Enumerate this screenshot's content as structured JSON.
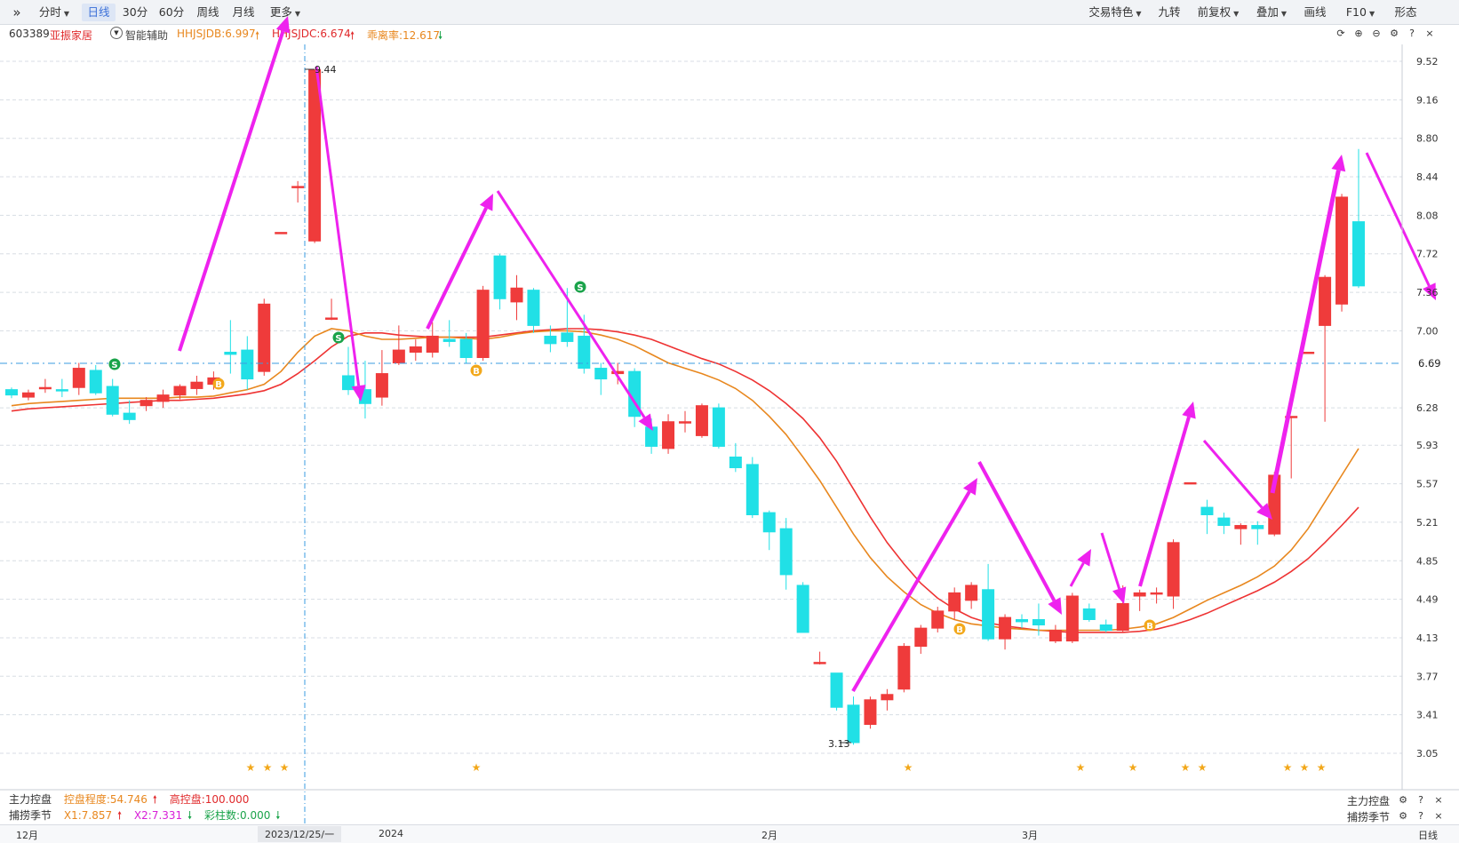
{
  "toolbar": {
    "expand_label": "»",
    "periods": [
      {
        "label": "分时",
        "dropdown": true
      },
      {
        "label": "日线",
        "active": true
      },
      {
        "label": "30分"
      },
      {
        "label": "60分"
      },
      {
        "label": "周线"
      },
      {
        "label": "月线"
      },
      {
        "label": "更多",
        "dropdown": true
      }
    ],
    "right_tools": [
      {
        "label": "交易特色",
        "dropdown": true
      },
      {
        "label": "九转"
      },
      {
        "label": "前复权",
        "dropdown": true
      },
      {
        "label": "叠加",
        "dropdown": true
      },
      {
        "label": "画线"
      },
      {
        "label": "F10",
        "dropdown": true
      },
      {
        "label": "形态"
      }
    ]
  },
  "info": {
    "code": "603389",
    "name": "亚振家居",
    "assist_label": "智能辅助",
    "ind1": "HHJSJDB:6.997",
    "ind2": "HHJSJDC:6.674",
    "ind3": "乖离率:12.617"
  },
  "price_axis": {
    "ticks": [
      "9.52",
      "9.16",
      "8.80",
      "8.44",
      "8.08",
      "7.72",
      "7.36",
      "7.00",
      "6.28",
      "5.93",
      "5.57",
      "5.21",
      "4.85",
      "4.49",
      "4.13",
      "3.77",
      "3.41",
      "3.05"
    ],
    "current_price": "6.69"
  },
  "annotations": {
    "high_label": "9.44",
    "low_label": "3.13"
  },
  "sub_indicators": {
    "line1": {
      "name": "主力控盘",
      "a": "控盘程度:54.746",
      "b": "高控盘:100.000"
    },
    "line2": {
      "name": "捕捞季节",
      "a": "X1:7.857",
      "b": "X2:7.331",
      "c": "彩柱数:0.000"
    },
    "right1": "主力控盘",
    "right2": "捕捞季节"
  },
  "time_axis": {
    "labels": [
      "12月",
      "2024",
      "2月",
      "3月"
    ],
    "cursor_date": "2023/12/25/一",
    "period_label": "日线"
  },
  "colors": {
    "up": "#ef3b3b",
    "down": "#21e0e6",
    "ma_fast": "#e8871e",
    "ma_slow": "#ee3333",
    "arrow": "#ee22ee",
    "grid": "#d8dde4",
    "crosshair": "#3a9be0"
  },
  "chart_data": {
    "type": "candlestick",
    "ylim": [
      2.9,
      9.7
    ],
    "candles": [
      {
        "o": 6.45,
        "c": 6.4,
        "h": 6.47,
        "l": 6.37
      },
      {
        "o": 6.38,
        "c": 6.42,
        "h": 6.45,
        "l": 6.35
      },
      {
        "o": 6.46,
        "c": 6.47,
        "h": 6.55,
        "l": 6.42
      },
      {
        "o": 6.45,
        "c": 6.44,
        "h": 6.55,
        "l": 6.38
      },
      {
        "o": 6.47,
        "c": 6.65,
        "h": 6.7,
        "l": 6.4
      },
      {
        "o": 6.63,
        "c": 6.42,
        "h": 6.68,
        "l": 6.4
      },
      {
        "o": 6.48,
        "c": 6.22,
        "h": 6.55,
        "l": 6.2
      },
      {
        "o": 6.23,
        "c": 6.17,
        "h": 6.35,
        "l": 6.13
      },
      {
        "o": 6.3,
        "c": 6.35,
        "h": 6.38,
        "l": 6.25
      },
      {
        "o": 6.34,
        "c": 6.4,
        "h": 6.45,
        "l": 6.28
      },
      {
        "o": 6.4,
        "c": 6.48,
        "h": 6.5,
        "l": 6.36
      },
      {
        "o": 6.46,
        "c": 6.52,
        "h": 6.58,
        "l": 6.4
      },
      {
        "o": 6.5,
        "c": 6.56,
        "h": 6.62,
        "l": 6.45
      },
      {
        "o": 6.8,
        "c": 6.78,
        "h": 7.1,
        "l": 6.6
      },
      {
        "o": 6.82,
        "c": 6.55,
        "h": 6.95,
        "l": 6.45
      },
      {
        "o": 6.62,
        "c": 7.25,
        "h": 7.3,
        "l": 6.58
      },
      {
        "o": 7.92,
        "c": 7.92,
        "h": 7.92,
        "l": 7.92
      },
      {
        "o": 8.35,
        "c": 8.35,
        "h": 8.4,
        "l": 8.2
      },
      {
        "o": 7.84,
        "c": 9.44,
        "h": 9.44,
        "l": 7.82
      },
      {
        "o": 7.12,
        "c": 7.12,
        "h": 7.3,
        "l": 7.1
      },
      {
        "o": 6.58,
        "c": 6.45,
        "h": 6.85,
        "l": 6.4
      },
      {
        "o": 6.45,
        "c": 6.32,
        "h": 6.72,
        "l": 6.18
      },
      {
        "o": 6.38,
        "c": 6.6,
        "h": 6.82,
        "l": 6.3
      },
      {
        "o": 6.7,
        "c": 6.82,
        "h": 7.05,
        "l": 6.68
      },
      {
        "o": 6.8,
        "c": 6.85,
        "h": 6.92,
        "l": 6.72
      },
      {
        "o": 6.8,
        "c": 6.95,
        "h": 7.08,
        "l": 6.75
      },
      {
        "o": 6.92,
        "c": 6.9,
        "h": 7.1,
        "l": 6.85
      },
      {
        "o": 6.92,
        "c": 6.75,
        "h": 6.98,
        "l": 6.7
      },
      {
        "o": 6.75,
        "c": 7.38,
        "h": 7.42,
        "l": 6.72
      },
      {
        "o": 7.7,
        "c": 7.3,
        "h": 7.72,
        "l": 7.2
      },
      {
        "o": 7.27,
        "c": 7.4,
        "h": 7.52,
        "l": 7.1
      },
      {
        "o": 7.38,
        "c": 7.05,
        "h": 7.4,
        "l": 6.98
      },
      {
        "o": 6.95,
        "c": 6.88,
        "h": 7.05,
        "l": 6.8
      },
      {
        "o": 6.98,
        "c": 6.9,
        "h": 7.4,
        "l": 6.85
      },
      {
        "o": 6.95,
        "c": 6.65,
        "h": 7.15,
        "l": 6.6
      },
      {
        "o": 6.65,
        "c": 6.55,
        "h": 6.7,
        "l": 6.4
      },
      {
        "o": 6.6,
        "c": 6.62,
        "h": 6.7,
        "l": 6.5
      },
      {
        "o": 6.62,
        "c": 6.2,
        "h": 6.65,
        "l": 6.1
      },
      {
        "o": 6.1,
        "c": 5.92,
        "h": 6.18,
        "l": 5.85
      },
      {
        "o": 5.9,
        "c": 6.15,
        "h": 6.22,
        "l": 5.85
      },
      {
        "o": 6.15,
        "c": 6.15,
        "h": 6.25,
        "l": 6.05
      },
      {
        "o": 6.02,
        "c": 6.3,
        "h": 6.32,
        "l": 6.0
      },
      {
        "o": 6.28,
        "c": 5.92,
        "h": 6.32,
        "l": 5.9
      },
      {
        "o": 5.82,
        "c": 5.72,
        "h": 5.95,
        "l": 5.68
      },
      {
        "o": 5.75,
        "c": 5.28,
        "h": 5.82,
        "l": 5.25
      },
      {
        "o": 5.3,
        "c": 5.12,
        "h": 5.32,
        "l": 4.95
      },
      {
        "o": 5.15,
        "c": 4.72,
        "h": 5.25,
        "l": 4.58
      },
      {
        "o": 4.62,
        "c": 4.18,
        "h": 4.65,
        "l": 4.18
      },
      {
        "o": 3.9,
        "c": 3.9,
        "h": 4.0,
        "l": 3.88
      },
      {
        "o": 3.8,
        "c": 3.48,
        "h": 3.8,
        "l": 3.45
      },
      {
        "o": 3.5,
        "c": 3.15,
        "h": 3.58,
        "l": 3.13
      },
      {
        "o": 3.32,
        "c": 3.55,
        "h": 3.58,
        "l": 3.28
      },
      {
        "o": 3.55,
        "c": 3.6,
        "h": 3.65,
        "l": 3.45
      },
      {
        "o": 3.65,
        "c": 4.05,
        "h": 4.08,
        "l": 3.62
      },
      {
        "o": 4.05,
        "c": 4.22,
        "h": 4.25,
        "l": 3.98
      },
      {
        "o": 4.22,
        "c": 4.38,
        "h": 4.42,
        "l": 4.18
      },
      {
        "o": 4.38,
        "c": 4.55,
        "h": 4.6,
        "l": 4.3
      },
      {
        "o": 4.48,
        "c": 4.62,
        "h": 4.65,
        "l": 4.4
      },
      {
        "o": 4.58,
        "c": 4.12,
        "h": 4.82,
        "l": 4.1
      },
      {
        "o": 4.12,
        "c": 4.32,
        "h": 4.35,
        "l": 4.02
      },
      {
        "o": 4.3,
        "c": 4.28,
        "h": 4.35,
        "l": 4.22
      },
      {
        "o": 4.3,
        "c": 4.25,
        "h": 4.45,
        "l": 4.15
      },
      {
        "o": 4.1,
        "c": 4.2,
        "h": 4.25,
        "l": 4.08
      },
      {
        "o": 4.1,
        "c": 4.52,
        "h": 4.55,
        "l": 4.08
      },
      {
        "o": 4.4,
        "c": 4.3,
        "h": 4.45,
        "l": 4.28
      },
      {
        "o": 4.25,
        "c": 4.2,
        "h": 4.3,
        "l": 4.18
      },
      {
        "o": 4.2,
        "c": 4.45,
        "h": 4.62,
        "l": 4.18
      },
      {
        "o": 4.52,
        "c": 4.55,
        "h": 4.58,
        "l": 4.38
      },
      {
        "o": 4.55,
        "c": 4.55,
        "h": 4.6,
        "l": 4.45
      },
      {
        "o": 4.52,
        "c": 5.02,
        "h": 5.05,
        "l": 4.4
      },
      {
        "o": 5.58,
        "c": 5.58,
        "h": 5.58,
        "l": 5.58
      },
      {
        "o": 5.35,
        "c": 5.28,
        "h": 5.42,
        "l": 5.1
      },
      {
        "o": 5.25,
        "c": 5.18,
        "h": 5.3,
        "l": 5.1
      },
      {
        "o": 5.15,
        "c": 5.18,
        "h": 5.2,
        "l": 5.0
      },
      {
        "o": 5.18,
        "c": 5.15,
        "h": 5.22,
        "l": 5.0
      },
      {
        "o": 5.1,
        "c": 5.65,
        "h": 5.68,
        "l": 5.08
      },
      {
        "o": 6.2,
        "c": 6.2,
        "h": 6.2,
        "l": 5.62
      },
      {
        "o": 6.8,
        "c": 6.8,
        "h": 6.8,
        "l": 6.8
      },
      {
        "o": 7.05,
        "c": 7.5,
        "h": 7.52,
        "l": 6.15
      },
      {
        "o": 7.25,
        "c": 8.25,
        "h": 8.28,
        "l": 7.18
      },
      {
        "o": 8.02,
        "c": 7.42,
        "h": 8.7,
        "l": 7.4
      }
    ],
    "ma_fast": [
      6.3,
      6.32,
      6.33,
      6.34,
      6.35,
      6.36,
      6.37,
      6.37,
      6.37,
      6.37,
      6.38,
      6.38,
      6.39,
      6.42,
      6.45,
      6.5,
      6.62,
      6.8,
      6.95,
      7.02,
      7.0,
      6.95,
      6.92,
      6.92,
      6.93,
      6.94,
      6.94,
      6.93,
      6.92,
      6.94,
      6.97,
      6.99,
      7.0,
      7.0,
      6.99,
      6.96,
      6.92,
      6.86,
      6.78,
      6.7,
      6.65,
      6.6,
      6.54,
      6.46,
      6.35,
      6.2,
      6.03,
      5.82,
      5.6,
      5.35,
      5.1,
      4.88,
      4.7,
      4.56,
      4.44,
      4.36,
      4.3,
      4.26,
      4.24,
      4.22,
      4.21,
      4.2,
      4.2,
      4.2,
      4.2,
      4.2,
      4.21,
      4.23,
      4.26,
      4.32,
      4.4,
      4.48,
      4.55,
      4.62,
      4.7,
      4.8,
      4.95,
      5.15,
      5.4,
      5.65,
      5.9
    ],
    "ma_slow": [
      6.25,
      6.27,
      6.28,
      6.29,
      6.3,
      6.31,
      6.32,
      6.33,
      6.34,
      6.35,
      6.35,
      6.36,
      6.37,
      6.39,
      6.41,
      6.44,
      6.5,
      6.6,
      6.72,
      6.85,
      6.95,
      6.98,
      6.98,
      6.96,
      6.95,
      6.94,
      6.94,
      6.94,
      6.94,
      6.96,
      6.98,
      7.0,
      7.01,
      7.02,
      7.02,
      7.01,
      6.99,
      6.96,
      6.92,
      6.86,
      6.8,
      6.74,
      6.69,
      6.62,
      6.54,
      6.44,
      6.32,
      6.18,
      6.0,
      5.78,
      5.52,
      5.26,
      5.02,
      4.82,
      4.64,
      4.5,
      4.4,
      4.32,
      4.27,
      4.24,
      4.22,
      4.2,
      4.19,
      4.18,
      4.18,
      4.18,
      4.18,
      4.19,
      4.21,
      4.25,
      4.3,
      4.36,
      4.43,
      4.5,
      4.57,
      4.65,
      4.75,
      4.87,
      5.02,
      5.18,
      5.35
    ]
  }
}
